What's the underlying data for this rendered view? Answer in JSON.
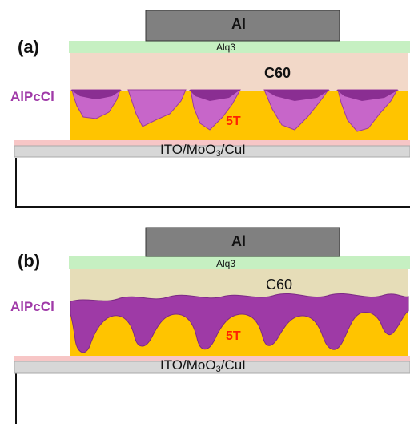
{
  "colors": {
    "al": "#808080",
    "alq3": "#c6f0c2",
    "c60_a": "#f2d8c8",
    "c60_b": "#e6ddb8",
    "alpccl": "#a03aa8",
    "alpccl_fill": "#c766c9",
    "five_t": "#ffc400",
    "ito_top": "#f7c6c6",
    "ito": "#d7d7d7",
    "label_5t": "#ff2200"
  },
  "panel_a": {
    "panel_label": "(a)",
    "al": "Al",
    "alq3": "Alq3",
    "c60": "C60",
    "alpccl": "AlPcCl",
    "five_t": "5T",
    "substrate_prefix": "ITO/MoO",
    "substrate_sub": "3",
    "substrate_suffix": "/CuI"
  },
  "panel_b": {
    "panel_label": "(b)",
    "al": "Al",
    "alq3": "Alq3",
    "c60": "C60",
    "alpccl": "AlPcCl",
    "five_t": "5T",
    "substrate_prefix": "ITO/MoO",
    "substrate_sub": "3",
    "substrate_suffix": "/CuI"
  }
}
